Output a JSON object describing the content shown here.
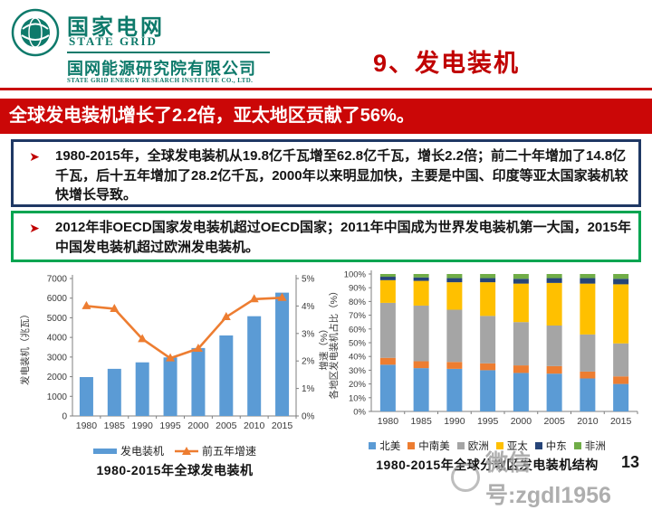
{
  "header": {
    "brand_cn": "国家电网",
    "brand_en": "STATE GRID",
    "institute_cn": "国网能源研究院有限公司",
    "institute_en": "STATE GRID ENERGY RESEARCH INSTITUTE CO., LTD.",
    "slide_title": "9、发电装机"
  },
  "banner": {
    "text": "全球发电装机增长了2.2倍，亚太地区贡献了56%。"
  },
  "icons": {
    "bullet": "➤"
  },
  "bullets": [
    {
      "text": "1980-2015年，全球发电装机从19.8亿千瓦增至62.8亿千瓦，增长2.2倍；前二十年增加了14.8亿千瓦，后十五年增加了28.2亿千瓦，2000年以来明显加快，主要是中国、印度等亚太国家装机较快增长导致。"
    },
    {
      "text": "2012年非OECD国家发电装机超过OECD国家；2011年中国成为世界发电装机第一大国，2015年中国发电装机超过欧洲发电装机。"
    }
  ],
  "watermark": "微信号:zgdl1956",
  "page_number": "13",
  "colors": {
    "banner_red": "#cb0707",
    "title_red": "#c00000",
    "brand_teal": "#0e7a6b",
    "box1_border": "#1f3864",
    "box2_border": "#00a551"
  },
  "chart_data": [
    {
      "type": "bar",
      "subtype": "bar+line-dual-axis",
      "title": "1980-2015年全球发电装机",
      "categories": [
        "1980",
        "1985",
        "1990",
        "1995",
        "2000",
        "2005",
        "2010",
        "2015"
      ],
      "series": [
        {
          "name": "发电装机",
          "kind": "bar",
          "axis": "left",
          "color": "#5b9bd5",
          "values": [
            1980,
            2400,
            2730,
            2980,
            3460,
            4100,
            5080,
            6280
          ]
        },
        {
          "name": "前五年增速",
          "kind": "line",
          "axis": "right",
          "color": "#ed7d31",
          "values": [
            4.0,
            3.9,
            2.8,
            2.1,
            2.45,
            3.6,
            4.25,
            4.3
          ]
        }
      ],
      "y_left": {
        "label": "发电装机（兆瓦）",
        "min": 0,
        "max": 7000,
        "step": 1000,
        "suffix": ""
      },
      "y_right": {
        "label": "增速（%）",
        "min": 0,
        "max": 5,
        "step": 1,
        "suffix": "%"
      },
      "grid": false,
      "legend_position": "bottom"
    },
    {
      "type": "bar",
      "subtype": "stacked-100",
      "title": "1980-2015年全球分地区发电装机结构",
      "categories": [
        "1980",
        "1985",
        "1990",
        "1995",
        "2000",
        "2005",
        "2010",
        "2015"
      ],
      "y": {
        "label": "各地区发电装机占比（%）",
        "min": 0,
        "max": 100,
        "step": 10,
        "suffix": "%"
      },
      "series": [
        {
          "name": "北美",
          "color": "#5b9bd5",
          "values": [
            34,
            31.5,
            31,
            30,
            28,
            27.5,
            24,
            20
          ]
        },
        {
          "name": "中南美",
          "color": "#ed7d31",
          "values": [
            5,
            5,
            5,
            5,
            5.5,
            5.5,
            5,
            5.5
          ]
        },
        {
          "name": "欧洲",
          "color": "#a5a5a5",
          "values": [
            40,
            40.5,
            38,
            34.5,
            31.5,
            29.5,
            27,
            24
          ]
        },
        {
          "name": "亚太",
          "color": "#ffc000",
          "values": [
            16.5,
            18,
            20,
            24.5,
            28,
            31,
            37,
            43
          ]
        },
        {
          "name": "中东",
          "color": "#264478",
          "values": [
            2.5,
            2.5,
            3,
            3,
            3.5,
            3.5,
            4,
            4
          ]
        },
        {
          "name": "非洲",
          "color": "#70ad47",
          "values": [
            2,
            2.5,
            3,
            3,
            3.5,
            3,
            3,
            3.5
          ]
        }
      ],
      "grid": false,
      "legend_position": "bottom"
    }
  ]
}
